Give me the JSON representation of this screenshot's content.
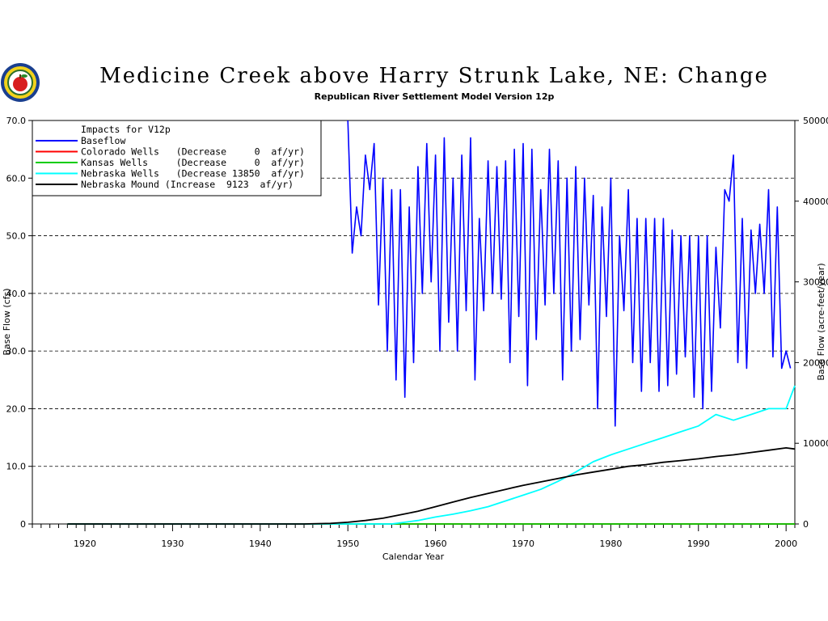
{
  "chart_data": {
    "type": "line",
    "title": "Medicine Creek above Harry Strunk Lake, NE: Change",
    "subtitle": "Republican River Settlement Model Version 12p",
    "xlabel": "Calendar Year",
    "ylabel_left": "Base Flow (cfs)",
    "ylabel_right": "Base Flow (acre-feet/year)",
    "xlim": [
      1914,
      2001
    ],
    "ylim_left": [
      0,
      70
    ],
    "ylim_right": [
      0,
      50000
    ],
    "x_ticks": [
      1920,
      1930,
      1940,
      1950,
      1960,
      1970,
      1980,
      1990,
      2000
    ],
    "y_ticks_left": [
      "0",
      "10.0",
      "20.0",
      "30.0",
      "40.0",
      "50.0",
      "60.0",
      "70.0"
    ],
    "y_ticks_right": [
      "0",
      "10000",
      "20000",
      "30000",
      "40000",
      "50000"
    ],
    "grid": "horizontal dashed",
    "legend_placement": "top-left",
    "legend_title": "Impacts for V12p",
    "series": [
      {
        "name": "Baseflow",
        "legend_text": "Baseflow",
        "color": "#0000ff",
        "x": [
          1950.0,
          1950.5,
          1951.0,
          1951.5,
          1952.0,
          1952.5,
          1953.0,
          1953.5,
          1954.0,
          1954.5,
          1955.0,
          1955.5,
          1956.0,
          1956.5,
          1957.0,
          1957.5,
          1958.0,
          1958.5,
          1959.0,
          1959.5,
          1960.0,
          1960.5,
          1961.0,
          1961.5,
          1962.0,
          1962.5,
          1963.0,
          1963.5,
          1964.0,
          1964.5,
          1965.0,
          1965.5,
          1966.0,
          1966.5,
          1967.0,
          1967.5,
          1968.0,
          1968.5,
          1969.0,
          1969.5,
          1970.0,
          1970.5,
          1971.0,
          1971.5,
          1972.0,
          1972.5,
          1973.0,
          1973.5,
          1974.0,
          1974.5,
          1975.0,
          1975.5,
          1976.0,
          1976.5,
          1977.0,
          1977.5,
          1978.0,
          1978.5,
          1979.0,
          1979.5,
          1980.0,
          1980.5,
          1981.0,
          1981.5,
          1982.0,
          1982.5,
          1983.0,
          1983.5,
          1984.0,
          1984.5,
          1985.0,
          1985.5,
          1986.0,
          1986.5,
          1987.0,
          1987.5,
          1988.0,
          1988.5,
          1989.0,
          1989.5,
          1990.0,
          1990.5,
          1991.0,
          1991.5,
          1992.0,
          1992.5,
          1993.0,
          1993.5,
          1994.0,
          1994.5,
          1995.0,
          1995.5,
          1996.0,
          1996.5,
          1997.0,
          1997.5,
          1998.0,
          1998.5,
          1999.0,
          1999.5,
          2000.0,
          2000.5
        ],
        "y": [
          70.0,
          47.0,
          55.0,
          50.0,
          64.0,
          58.0,
          66.0,
          38.0,
          60.0,
          30.0,
          58.0,
          25.0,
          58.0,
          22.0,
          55.0,
          28.0,
          62.0,
          40.0,
          66.0,
          42.0,
          64.0,
          30.0,
          67.0,
          35.0,
          60.0,
          30.0,
          64.0,
          37.0,
          67.0,
          25.0,
          53.0,
          37.0,
          63.0,
          40.0,
          62.0,
          39.0,
          63.0,
          28.0,
          65.0,
          36.0,
          66.0,
          24.0,
          65.0,
          32.0,
          58.0,
          38.0,
          65.0,
          40.0,
          63.0,
          25.0,
          60.0,
          30.0,
          62.0,
          32.0,
          60.0,
          38.0,
          57.0,
          20.0,
          55.0,
          36.0,
          60.0,
          17.0,
          50.0,
          37.0,
          58.0,
          28.0,
          53.0,
          23.0,
          53.0,
          28.0,
          53.0,
          23.0,
          53.0,
          24.0,
          51.0,
          26.0,
          50.0,
          29.0,
          50.0,
          22.0,
          50.0,
          20.0,
          50.0,
          23.0,
          48.0,
          34.0,
          58.0,
          56.0,
          64.0,
          28.0,
          53.0,
          27.0,
          51.0,
          40.0,
          52.0,
          40.0,
          58.0,
          29.0,
          55.0,
          27.0,
          30.0,
          27.0
        ]
      },
      {
        "name": "Colorado Wells",
        "legend_text": "Colorado Wells   (Decrease     0  af/yr)",
        "color": "#ff0000",
        "x": [
          1918,
          2001
        ],
        "y": [
          0,
          0
        ]
      },
      {
        "name": "Kansas Wells",
        "legend_text": "Kansas Wells     (Decrease     0  af/yr)",
        "color": "#00cc00",
        "x": [
          1918,
          2001
        ],
        "y": [
          0,
          0
        ]
      },
      {
        "name": "Nebraska Wells",
        "legend_text": "Nebraska Wells   (Decrease 13850  af/yr)",
        "color": "#00ffff",
        "x": [
          1918,
          1955,
          1958,
          1960,
          1962,
          1964,
          1966,
          1968,
          1970,
          1972,
          1974,
          1976,
          1978,
          1980,
          1982,
          1984,
          1986,
          1988,
          1990,
          1992,
          1994,
          1996,
          1998,
          2000,
          2001
        ],
        "y": [
          0,
          0,
          0.6,
          1.2,
          1.7,
          2.3,
          3.0,
          4.0,
          5.0,
          6.0,
          7.4,
          9.0,
          10.8,
          12.0,
          13.0,
          14.0,
          15.0,
          16.0,
          17.0,
          19.0,
          18.0,
          19.0,
          20.0,
          20.0,
          24.0
        ]
      },
      {
        "name": "Nebraska Mound",
        "legend_text": "Nebraska Mound (Increase  9123  af/yr)",
        "color": "#000000",
        "x": [
          1918,
          1945,
          1948,
          1950,
          1952,
          1954,
          1956,
          1958,
          1960,
          1962,
          1964,
          1966,
          1968,
          1970,
          1972,
          1974,
          1976,
          1978,
          1980,
          1982,
          1984,
          1986,
          1988,
          1990,
          1992,
          1994,
          1996,
          1998,
          2000,
          2001
        ],
        "y": [
          0,
          0,
          0.1,
          0.3,
          0.6,
          1.0,
          1.6,
          2.2,
          3.0,
          3.8,
          4.6,
          5.3,
          6.0,
          6.7,
          7.3,
          7.9,
          8.5,
          9.0,
          9.5,
          10.0,
          10.3,
          10.7,
          11.0,
          11.3,
          11.7,
          12.0,
          12.4,
          12.8,
          13.2,
          13.0
        ]
      }
    ]
  }
}
